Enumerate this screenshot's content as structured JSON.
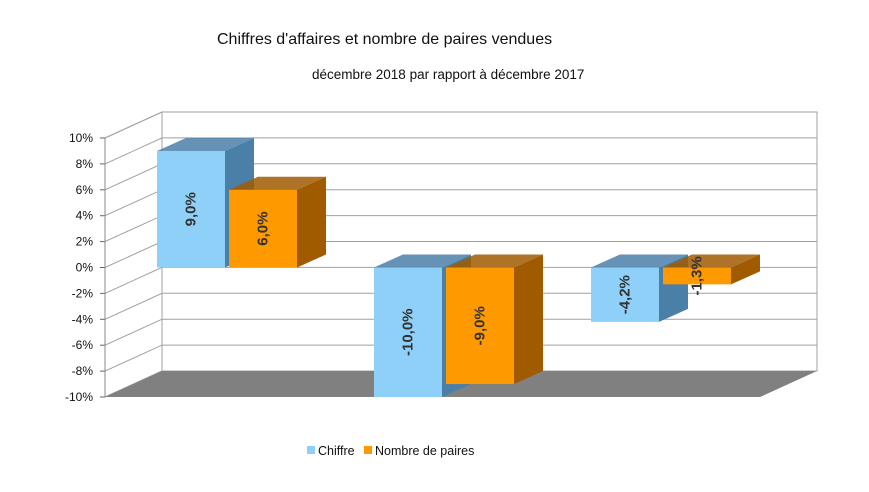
{
  "chart_data": {
    "type": "bar",
    "title": "Chiffres d'affaires et nombre de paires vendues",
    "subtitle": "décembre 2018 par rapport à décembre 2017",
    "categories": [
      "",
      "",
      ""
    ],
    "series": [
      {
        "name": "Chiffre",
        "values": [
          9.0,
          -10.0,
          -4.2
        ],
        "labels": [
          "9,0%",
          "-10,0%",
          "-4,2%"
        ],
        "color": "#8fd0f8",
        "side_color": "#4a7fa8"
      },
      {
        "name": "Nombre de paires",
        "values": [
          6.0,
          -9.0,
          -1.3
        ],
        "labels": [
          "6,0%",
          "-9,0%",
          "-1,3%"
        ],
        "color": "#ff9900",
        "side_color": "#a05a00"
      }
    ],
    "ylim": [
      -10,
      10
    ],
    "yticks": [
      10,
      8,
      6,
      4,
      2,
      0,
      -2,
      -4,
      -6,
      -8,
      -10
    ],
    "ytick_labels": [
      "10%",
      "8%",
      "6%",
      "4%",
      "2%",
      "0%",
      "-2%",
      "-4%",
      "-6%",
      "-8%",
      "-10%"
    ],
    "grid": true,
    "legend_position": "bottom",
    "style": "3d-clustered-column",
    "floor_color": "#808080",
    "grid_color": "#a0a0a0"
  }
}
